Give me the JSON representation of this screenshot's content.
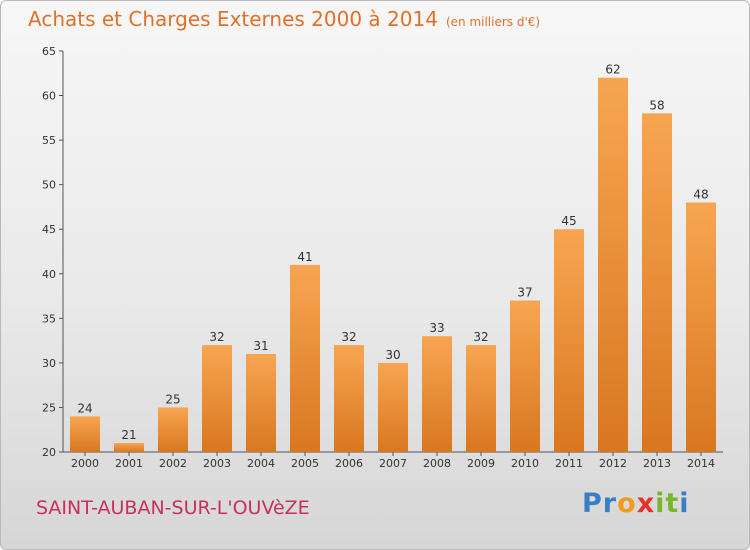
{
  "header": {
    "title": "Achats et Charges Externes 2000 à 2014",
    "unit": "(en milliers d'€)"
  },
  "footer": {
    "commune": "SAINT-AUBAN-SUR-L'OUVèZE",
    "logo": {
      "letters": [
        "P",
        "r",
        "o",
        "x",
        "i",
        "t",
        "i"
      ],
      "colors": [
        "#3a7fc4",
        "#3a7fc4",
        "#f29a1d",
        "#e4322b",
        "#79b52d",
        "#79b52d",
        "#3a7fc4"
      ]
    }
  },
  "colors": {
    "bar_top": "#f7a552",
    "bar_bottom": "#d97720",
    "title": "#e0702a",
    "commune": "#cc2f5b"
  },
  "chart_data": {
    "type": "bar",
    "categories": [
      "2000",
      "2001",
      "2002",
      "2003",
      "2004",
      "2005",
      "2006",
      "2007",
      "2008",
      "2009",
      "2010",
      "2011",
      "2012",
      "2013",
      "2014"
    ],
    "values": [
      24,
      21,
      25,
      32,
      31,
      41,
      32,
      30,
      33,
      32,
      37,
      45,
      62,
      58,
      48
    ],
    "ylim": [
      20,
      65
    ],
    "yticks": [
      20,
      25,
      30,
      35,
      40,
      45,
      50,
      55,
      60,
      65
    ],
    "grid": false,
    "data_labels": true
  }
}
